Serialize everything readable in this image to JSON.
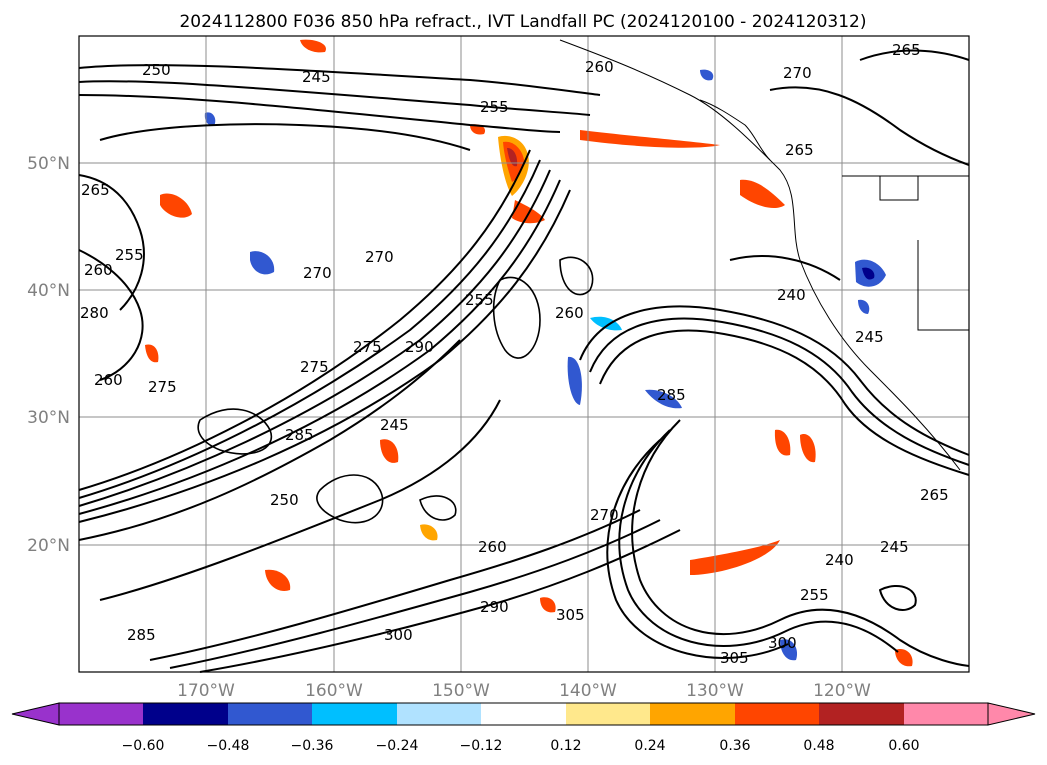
{
  "title": "2024112800 F036 850 hPa refract., IVT Landfall PC (2024120100 - 2024120312)",
  "map": {
    "lon_labels": [
      "170°W",
      "160°W",
      "150°W",
      "140°W",
      "130°W",
      "120°W"
    ],
    "lat_labels": [
      "50°N",
      "40°N",
      "30°N",
      "20°N"
    ],
    "grid": true,
    "contour_labels": [
      "250",
      "245",
      "255",
      "260",
      "270",
      "265",
      "265",
      "265",
      "255",
      "260",
      "280",
      "275",
      "260",
      "270",
      "270",
      "275",
      "275",
      "290",
      "255",
      "260",
      "240",
      "245",
      "285",
      "285",
      "245",
      "250",
      "260",
      "270",
      "265",
      "240",
      "245",
      "255",
      "300",
      "305",
      "305",
      "290",
      "285",
      "300"
    ]
  },
  "colorbar": {
    "ticks": [
      "−0.60",
      "−0.48",
      "−0.36",
      "−0.24",
      "−0.12",
      "0.12",
      "0.24",
      "0.36",
      "0.48",
      "0.60"
    ],
    "colors": [
      "#9932cc",
      "#00008b",
      "#3158d0",
      "#00bfff",
      "#b0e2ff",
      "#ffffff",
      "#ffe88c",
      "#ffa500",
      "#ff4500",
      "#b22222",
      "#ff88aa",
      "#ff88aa"
    ]
  }
}
